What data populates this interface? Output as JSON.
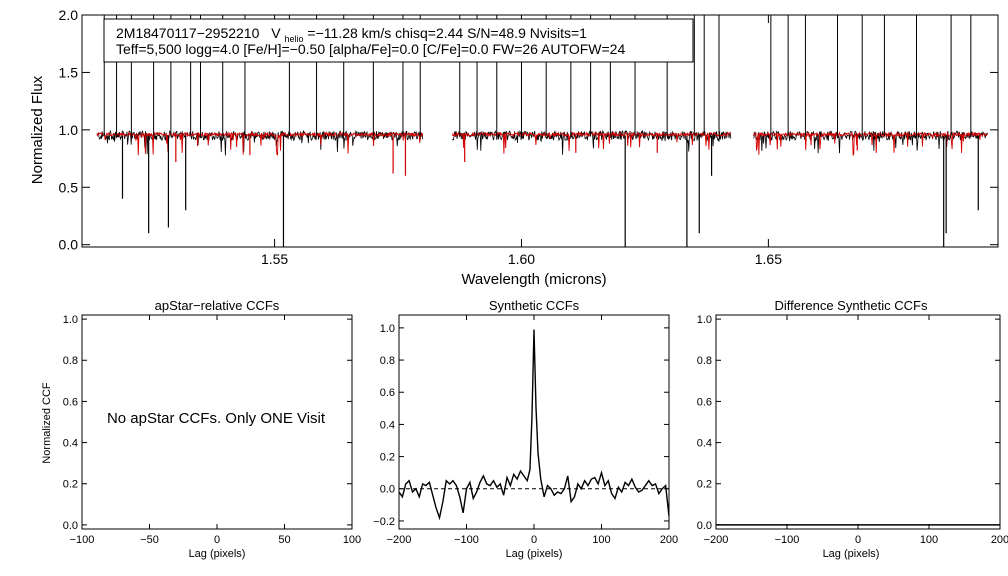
{
  "chart_data": [
    {
      "id": "spectrum",
      "type": "line",
      "title": "",
      "xlabel": "Wavelength (microns)",
      "ylabel": "Normalized Flux",
      "xlim": [
        1.511,
        1.6965
      ],
      "ylim": [
        -0.02,
        2.0
      ],
      "xticks": [
        1.55,
        1.6,
        1.65
      ],
      "xtick_labels": [
        "1.55",
        "1.60",
        "1.65"
      ],
      "yticks": [
        0.0,
        0.5,
        1.0,
        1.5,
        2.0
      ],
      "ytick_labels": [
        "0.0",
        "0.5",
        "1.0",
        "1.5",
        "2.0"
      ],
      "segments": [
        [
          1.514,
          1.58
        ],
        [
          1.586,
          1.6425
        ],
        [
          1.647,
          1.6945
        ]
      ],
      "series": [
        {
          "name": "observed",
          "color": "#000000",
          "continuum": 0.95
        },
        {
          "name": "model",
          "color": "#d40000",
          "continuum": 0.96
        }
      ],
      "spikes_up": [
        1.5155,
        1.518,
        1.521,
        1.5255,
        1.529,
        1.533,
        1.535,
        1.5395,
        1.544,
        1.553,
        1.5585,
        1.564,
        1.57,
        1.576,
        1.5795,
        1.5875,
        1.591,
        1.595,
        1.6,
        1.605,
        1.61,
        1.614,
        1.618,
        1.623,
        1.6295,
        1.635,
        1.637,
        1.64,
        1.6505,
        1.654,
        1.6575,
        1.664,
        1.669,
        1.6735,
        1.68,
        1.687,
        1.691
      ],
      "spikes_down": [
        [
          1.5192,
          0.4
        ],
        [
          1.5245,
          0.1
        ],
        [
          1.5285,
          0.15
        ],
        [
          1.532,
          0.3
        ],
        [
          1.5518,
          -0.02
        ],
        [
          1.621,
          -0.02
        ],
        [
          1.6335,
          -0.02
        ],
        [
          1.636,
          0.1
        ],
        [
          1.6385,
          0.6
        ],
        [
          1.6855,
          -0.02
        ],
        [
          1.686,
          0.1
        ],
        [
          1.6925,
          0.3
        ]
      ],
      "model_lines": [
        [
          1.53,
          0.72
        ],
        [
          1.545,
          0.78
        ],
        [
          1.574,
          0.62
        ],
        [
          1.5765,
          0.6
        ],
        [
          1.5885,
          0.72
        ],
        [
          1.611,
          0.8
        ],
        [
          1.6275,
          0.8
        ],
        [
          1.668,
          0.82
        ]
      ],
      "annotation": {
        "line1_star": "2M18470117−2952210",
        "vhelio_symbol": "V",
        "vhelio_sub": "helio",
        "line1_rest": "=−11.28 km/s  chisq=2.44  S/N=48.9  Nvisits=1",
        "line2": "Teff=5,500 logg=4.0 [Fe/H]=−0.50 [alpha/Fe]=0.0 [C/Fe]=0.0 FW=26 AUTOFW=24"
      }
    },
    {
      "id": "apstar_ccf",
      "type": "line",
      "title": "apStar−relative CCFs",
      "xlabel": "Lag (pixels)",
      "ylabel": "Normalized CCF",
      "xlim": [
        -100,
        100
      ],
      "ylim": [
        -0.02,
        1.02
      ],
      "xticks": [
        -100,
        -50,
        0,
        50,
        100
      ],
      "xtick_labels": [
        "−100",
        "−50",
        "0",
        "50",
        "100"
      ],
      "yticks": [
        0.0,
        0.2,
        0.4,
        0.6,
        0.8,
        1.0
      ],
      "ytick_labels": [
        "0.0",
        "0.2",
        "0.4",
        "0.6",
        "0.8",
        "1.0"
      ],
      "message": "No apStar CCFs.  Only ONE Visit"
    },
    {
      "id": "synthetic_ccf",
      "type": "line",
      "title": "Synthetic CCFs",
      "xlabel": "Lag (pixels)",
      "ylabel": "",
      "xlim": [
        -200,
        200
      ],
      "ylim": [
        -0.25,
        1.08
      ],
      "xticks": [
        -200,
        -100,
        0,
        100,
        200
      ],
      "xtick_labels": [
        "−200",
        "−100",
        "0",
        "100",
        "200"
      ],
      "yticks": [
        -0.2,
        0.0,
        0.2,
        0.4,
        0.6,
        0.8,
        1.0
      ],
      "ytick_labels": [
        "−0.2",
        "0.0",
        "0.2",
        "0.4",
        "0.6",
        "0.8",
        "1.0"
      ],
      "zero_line": 0.0,
      "series": [
        {
          "name": "ccf",
          "x": [
            -200,
            -195,
            -190,
            -185,
            -180,
            -175,
            -170,
            -165,
            -160,
            -155,
            -150,
            -145,
            -140,
            -135,
            -130,
            -125,
            -120,
            -115,
            -110,
            -105,
            -100,
            -95,
            -90,
            -85,
            -80,
            -75,
            -70,
            -65,
            -60,
            -55,
            -50,
            -45,
            -40,
            -35,
            -30,
            -25,
            -20,
            -15,
            -10,
            -6,
            -3,
            0,
            3,
            6,
            10,
            15,
            20,
            25,
            30,
            35,
            40,
            45,
            50,
            55,
            60,
            65,
            70,
            75,
            80,
            85,
            90,
            95,
            100,
            105,
            110,
            115,
            120,
            125,
            130,
            135,
            140,
            145,
            150,
            155,
            160,
            165,
            170,
            175,
            180,
            185,
            190,
            195,
            200
          ],
          "y": [
            -0.02,
            -0.05,
            0.03,
            0.05,
            -0.02,
            0.0,
            -0.05,
            0.03,
            0.02,
            0.04,
            -0.04,
            -0.12,
            -0.18,
            -0.08,
            0.05,
            0.03,
            0.05,
            0.02,
            -0.05,
            -0.15,
            0.0,
            0.04,
            -0.06,
            -0.02,
            0.04,
            0.08,
            0.03,
            0.02,
            0.05,
            0.01,
            0.03,
            -0.04,
            0.07,
            0.02,
            0.09,
            0.06,
            0.11,
            0.08,
            0.05,
            0.12,
            0.45,
            0.99,
            0.5,
            0.22,
            0.06,
            -0.05,
            0.02,
            0.0,
            -0.04,
            -0.02,
            -0.03,
            0.0,
            0.08,
            -0.08,
            -0.05,
            0.03,
            0.0,
            0.05,
            0.02,
            0.06,
            0.07,
            0.03,
            0.1,
            0.02,
            0.05,
            -0.03,
            -0.06,
            0.01,
            -0.02,
            0.04,
            0.02,
            0.06,
            0.01,
            -0.02,
            -0.01,
            0.02,
            0.05,
            0.02,
            0.03,
            -0.03,
            0.0,
            0.02,
            -0.17
          ],
          "color": "#000000"
        }
      ]
    },
    {
      "id": "difference_ccf",
      "type": "line",
      "title": "Difference Synthetic CCFs",
      "xlabel": "Lag (pixels)",
      "ylabel": "",
      "xlim": [
        -200,
        200
      ],
      "ylim": [
        -0.02,
        1.02
      ],
      "xticks": [
        -200,
        -100,
        0,
        100,
        200
      ],
      "xtick_labels": [
        "−200",
        "−100",
        "0",
        "100",
        "200"
      ],
      "yticks": [
        0.0,
        0.2,
        0.4,
        0.6,
        0.8,
        1.0
      ],
      "ytick_labels": [
        "0.0",
        "0.2",
        "0.4",
        "0.6",
        "0.8",
        "1.0"
      ],
      "series": [
        {
          "name": "difference",
          "x": [
            -200,
            200
          ],
          "y": [
            0.0,
            0.0
          ],
          "color": "#000000"
        }
      ]
    }
  ]
}
